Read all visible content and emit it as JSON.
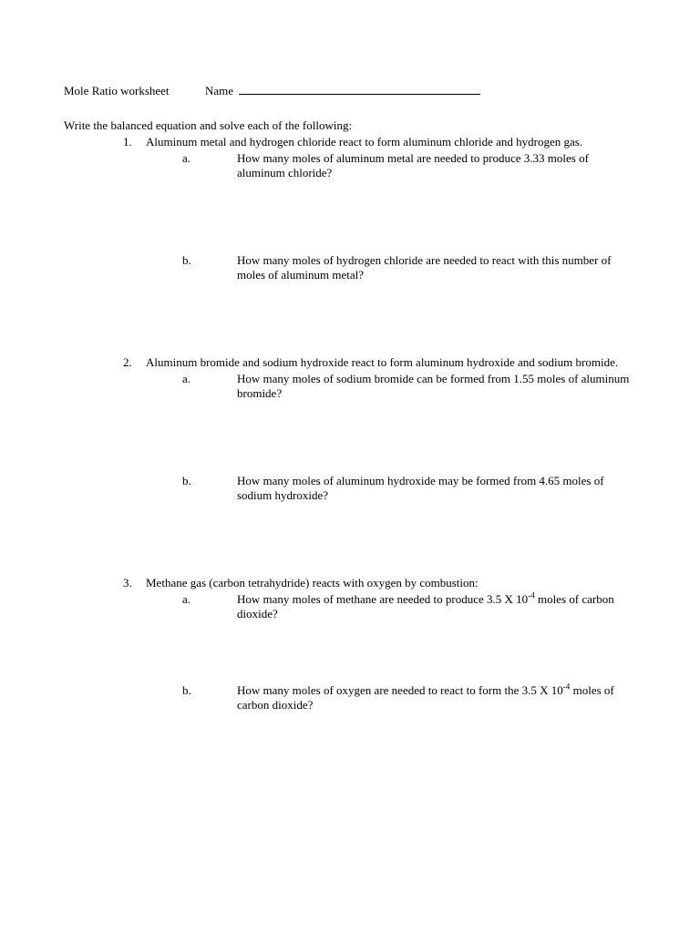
{
  "header": {
    "title": "Mole Ratio worksheet",
    "name_label": "Name"
  },
  "instructions": "Write the balanced equation and solve each of the following:",
  "questions": [
    {
      "num": "1.",
      "text": "Aluminum metal and hydrogen chloride react to form aluminum chloride and hydrogen gas.",
      "subs": [
        {
          "letter": "a.",
          "text": "How many moles of aluminum metal are needed to produce 3.33 moles of aluminum chloride?"
        },
        {
          "letter": "b.",
          "text": "How many moles of hydrogen chloride are needed to react with this number of moles of aluminum metal?"
        }
      ]
    },
    {
      "num": "2.",
      "text": "Aluminum bromide and sodium hydroxide react to form aluminum hydroxide and sodium bromide.",
      "subs": [
        {
          "letter": "a.",
          "text": "How many moles of sodium bromide can be formed from 1.55 moles of aluminum bromide?"
        },
        {
          "letter": "b.",
          "text": "How many moles of aluminum hydroxide may be formed from 4.65 moles of sodium hydroxide?"
        }
      ]
    },
    {
      "num": "3.",
      "text": "Methane gas (carbon tetrahydride) reacts with oxygen by combustion:",
      "subs": [
        {
          "letter": "a.",
          "text_html": "How many moles of methane are needed to produce 3.5 X 10<sup>-4</sup> moles of carbon dioxide?"
        },
        {
          "letter": "b.",
          "text_html": "How many moles of oxygen are needed to react to form the 3.5 X 10<sup>-4</sup> moles of carbon dioxide?"
        }
      ]
    }
  ]
}
